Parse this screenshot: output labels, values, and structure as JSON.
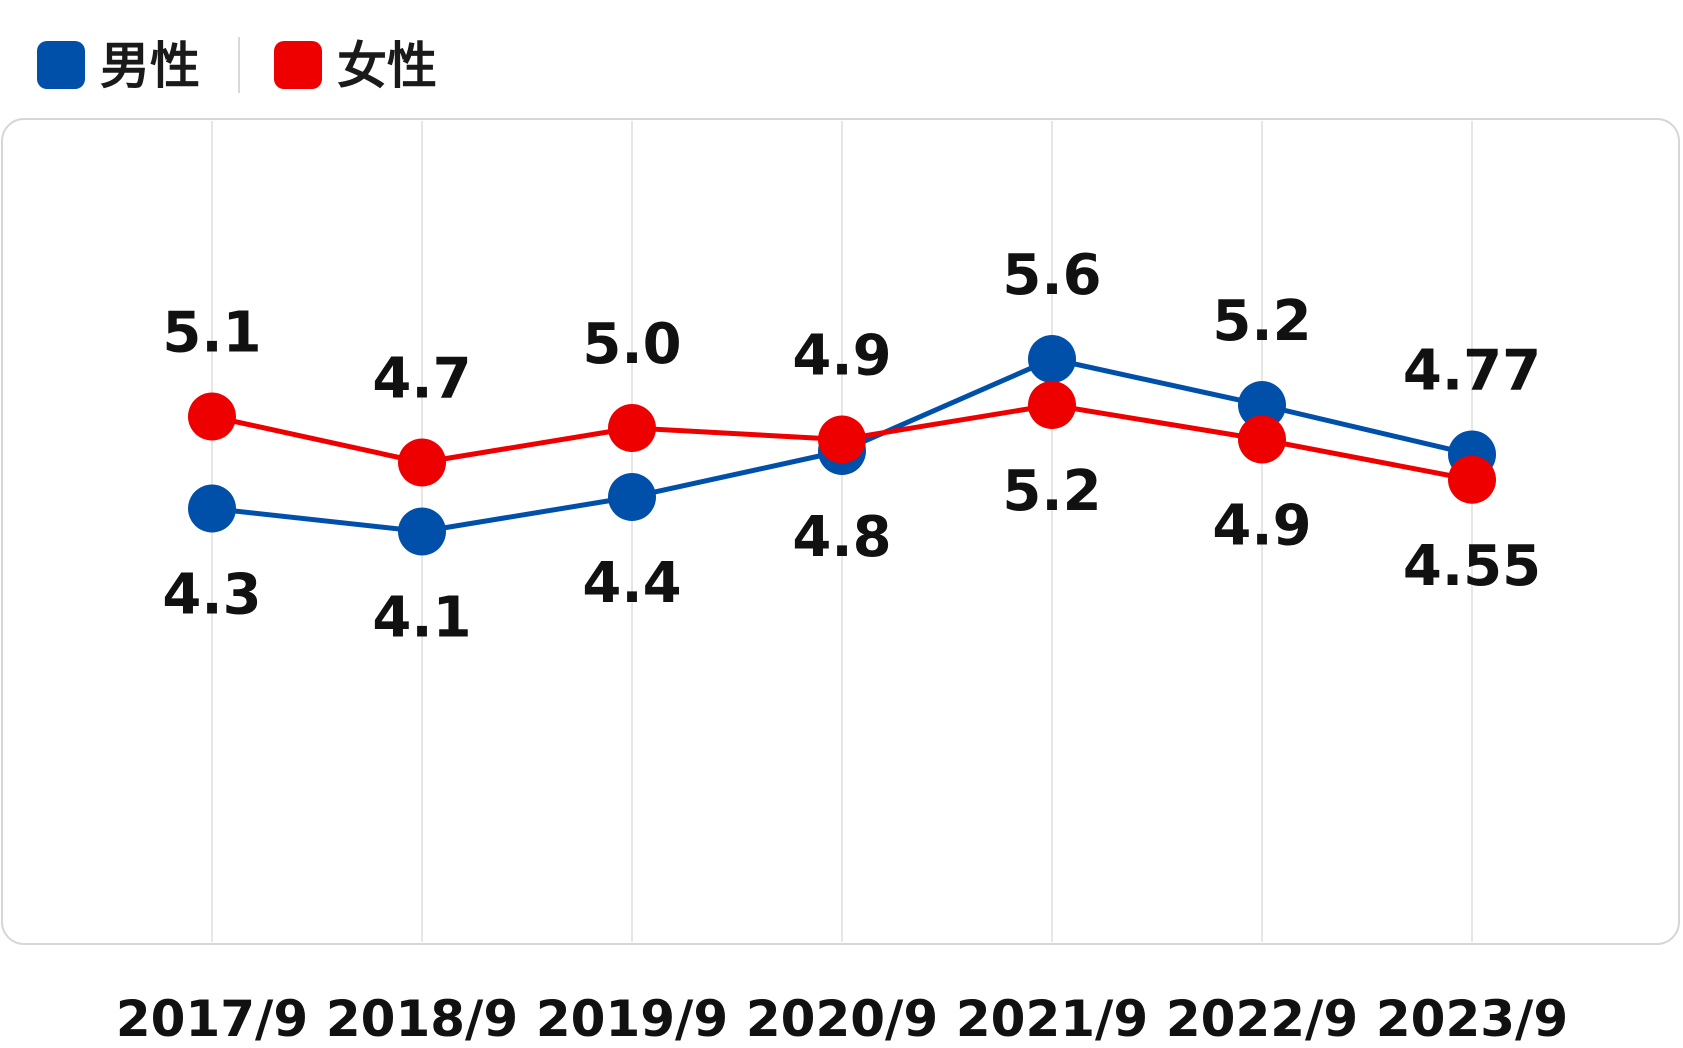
{
  "chart_data": {
    "type": "line",
    "title": "",
    "xlabel": "",
    "ylabel": "",
    "categories": [
      "2017/9",
      "2018/9",
      "2019/9",
      "2020/9",
      "2021/9",
      "2022/9",
      "2023/9"
    ],
    "series": [
      {
        "name": "男性",
        "color": "#0050aa",
        "values": [
          4.3,
          4.1,
          4.4,
          4.8,
          5.6,
          5.2,
          4.77
        ],
        "labels": [
          "4.3",
          "4.1",
          "4.4",
          "4.8",
          "5.6",
          "5.2",
          "4.77"
        ]
      },
      {
        "name": "女性",
        "color": "#ee0000",
        "values": [
          5.1,
          4.7,
          5.0,
          4.9,
          5.2,
          4.9,
          4.55
        ],
        "labels": [
          "5.1",
          "4.7",
          "5.0",
          "4.9",
          "5.2",
          "4.9",
          "4.55"
        ]
      }
    ],
    "grid": "vertical",
    "legend": "top-left"
  }
}
